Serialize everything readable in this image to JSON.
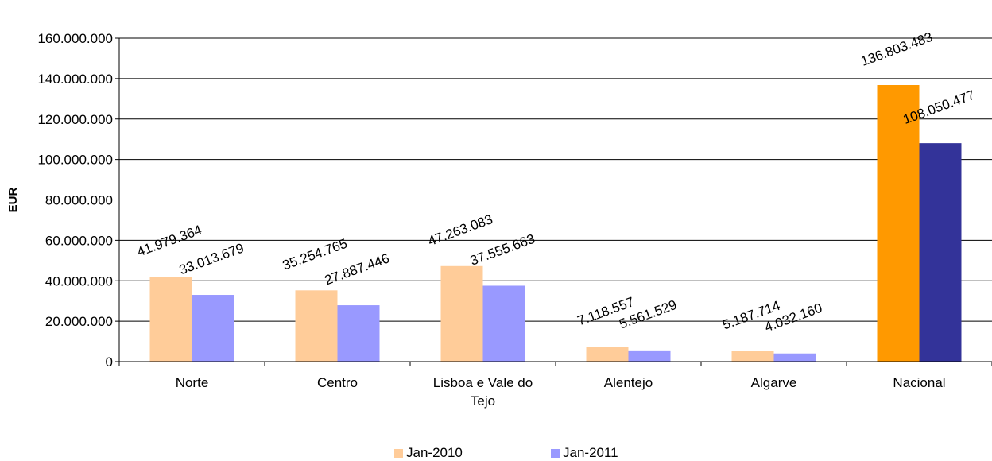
{
  "chart_data": {
    "type": "bar",
    "title": "",
    "xlabel": "",
    "ylabel": "EUR",
    "ylim": [
      0,
      160000000
    ],
    "y_ticks": [
      "0",
      "20.000.000",
      "40.000.000",
      "60.000.000",
      "80.000.000",
      "100.000.000",
      "120.000.000",
      "140.000.000",
      "160.000.000"
    ],
    "y_tick_values": [
      0,
      20000000,
      40000000,
      60000000,
      80000000,
      100000000,
      120000000,
      140000000,
      160000000
    ],
    "grid": true,
    "legend_position": "bottom",
    "categories": [
      "Norte",
      "Centro",
      "Lisboa e Vale do Tejo",
      "Alentejo",
      "Algarve",
      "Nacional"
    ],
    "category_lines": [
      [
        "Norte"
      ],
      [
        "Centro"
      ],
      [
        "Lisboa e Vale do",
        "Tejo"
      ],
      [
        "Alentejo"
      ],
      [
        "Algarve"
      ],
      [
        "Nacional"
      ]
    ],
    "series": [
      {
        "name": "Jan-2010",
        "color": "#FFCC99",
        "highlight_color": "#FF9900",
        "values": [
          41979364,
          35254765,
          47263083,
          7118557,
          5187714,
          136803483
        ],
        "labels": [
          "41.979.364",
          "35.254.765",
          "47.263.083",
          "7.118.557",
          "5.187.714",
          "136.803.483"
        ]
      },
      {
        "name": "Jan-2011",
        "color": "#9999FF",
        "highlight_color": "#333399",
        "values": [
          33013679,
          27887446,
          37555663,
          5561529,
          4032160,
          108050477
        ],
        "labels": [
          "33.013.679",
          "27.887.446",
          "37.555.663",
          "5.561.529",
          "4.032.160",
          "108.050.477"
        ]
      }
    ],
    "highlight_category": "Nacional"
  }
}
